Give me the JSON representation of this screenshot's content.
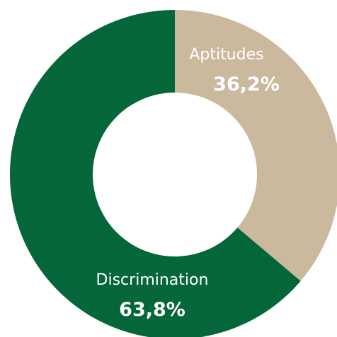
{
  "chart_data": {
    "type": "pie",
    "style": "donut",
    "start_angle": "12 o'clock",
    "direction": "clockwise",
    "categories": [
      "Aptitudes",
      "Discrimination"
    ],
    "values": [
      36.2,
      63.8
    ],
    "labels": [
      "36,2%",
      "63,8%"
    ],
    "colors": [
      "#cbb99e",
      "#05663a"
    ],
    "legend": "none",
    "title": "",
    "xlabel": "",
    "ylabel": ""
  }
}
